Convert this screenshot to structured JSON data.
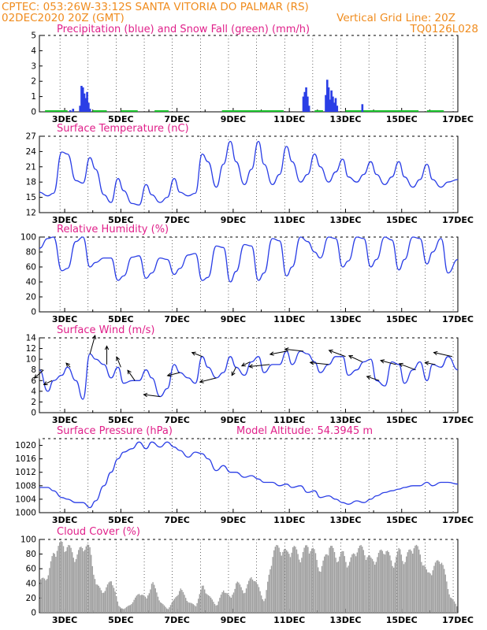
{
  "header": {
    "line1": "CPTEC:   053:26W-33:12S   SANTA VITORIA DO PALMAR (RS)",
    "line2_left": "02DEC2020 20Z (GMT)",
    "line2_right": "Vertical Grid Line: 20Z",
    "code": "TQ0126L028"
  },
  "panels": {
    "precip": {
      "title": "Precipitation (blue) and Snow Fall (green) (mm/h)"
    },
    "temp": {
      "title": "Surface Temperature (nC)"
    },
    "rh": {
      "title": "Relative Humidity (%)"
    },
    "wind": {
      "title": "Surface Wind (m/s)"
    },
    "pres": {
      "title": "Surface Pressure (hPa)",
      "subtitle": "Model Altitude: 54.3945 m"
    },
    "cloud": {
      "title": "Cloud Cover (%)"
    }
  },
  "colors": {
    "series": "#2a3ee6",
    "snow": "#19c22a",
    "cloud": "#a0a0a0",
    "header": "#f08c1e",
    "title": "#e0208a"
  },
  "chart_data": [
    {
      "type": "bar",
      "title": "Precipitation (blue) and Snow Fall (green) (mm/h)",
      "xlabel": "",
      "ylabel": "",
      "x_ticks": [
        "3DEC",
        "5DEC",
        "7DEC",
        "9DEC",
        "11DEC",
        "13DEC",
        "15DEC",
        "17DEC"
      ],
      "ylim": [
        0,
        5
      ],
      "y_ticks": [
        0,
        1,
        2,
        3,
        4,
        5
      ],
      "x_range_days": [
        2.1,
        17.0
      ],
      "series": [
        {
          "name": "precipitation",
          "x": [
            3.2,
            3.3,
            3.55,
            3.6,
            3.65,
            3.7,
            3.75,
            3.8,
            3.85,
            3.9,
            11.5,
            11.55,
            11.6,
            11.65,
            11.7,
            12.3,
            12.35,
            12.4,
            12.45,
            12.5,
            12.55,
            12.6,
            12.65,
            12.7,
            13.6
          ],
          "values": [
            0.1,
            0.2,
            0.4,
            1.7,
            1.6,
            1.2,
            0.9,
            1.3,
            0.6,
            0.2,
            1.0,
            1.3,
            1.6,
            1.0,
            0.4,
            1.1,
            2.1,
            1.6,
            0.8,
            1.4,
            1.0,
            0.6,
            0.9,
            0.4,
            0.5
          ]
        },
        {
          "name": "snow",
          "x": [],
          "values": []
        }
      ]
    },
    {
      "type": "line",
      "title": "Surface Temperature (nC)",
      "xlabel": "",
      "ylabel": "",
      "x_ticks": [
        "3DEC",
        "5DEC",
        "7DEC",
        "9DEC",
        "11DEC",
        "13DEC",
        "15DEC",
        "17DEC"
      ],
      "ylim": [
        12,
        27
      ],
      "y_ticks": [
        12,
        15,
        18,
        21,
        24,
        27
      ],
      "x": [
        2.1,
        2.4,
        2.6,
        2.9,
        3.1,
        3.4,
        3.65,
        3.9,
        4.1,
        4.4,
        4.65,
        4.9,
        5.1,
        5.4,
        5.65,
        5.9,
        6.1,
        6.4,
        6.65,
        6.9,
        7.1,
        7.4,
        7.65,
        7.9,
        8.1,
        8.4,
        8.65,
        8.9,
        9.1,
        9.4,
        9.65,
        9.9,
        10.1,
        10.4,
        10.65,
        10.9,
        11.1,
        11.4,
        11.65,
        11.9,
        12.1,
        12.4,
        12.65,
        12.9,
        13.1,
        13.4,
        13.65,
        13.9,
        14.1,
        14.4,
        14.65,
        14.9,
        15.1,
        15.4,
        15.65,
        15.9,
        16.1,
        16.4,
        16.65,
        17.0
      ],
      "values": [
        16.0,
        15.3,
        15.8,
        23.9,
        23.5,
        18.3,
        17.8,
        22.8,
        20.5,
        15.5,
        14.0,
        18.7,
        16.3,
        13.8,
        13.5,
        17.5,
        15.5,
        14.0,
        15.0,
        18.7,
        16.0,
        15.3,
        15.8,
        23.5,
        22.0,
        17.0,
        21.5,
        26.0,
        22.0,
        17.5,
        20.5,
        26.0,
        21.5,
        17.5,
        19.5,
        25.0,
        22.0,
        18.0,
        19.5,
        23.5,
        21.0,
        18.0,
        20.0,
        22.5,
        19.0,
        18.0,
        19.5,
        22.0,
        19.5,
        17.5,
        19.0,
        22.0,
        19.0,
        17.0,
        18.5,
        21.5,
        18.5,
        17.0,
        18.0,
        18.5
      ]
    },
    {
      "type": "line",
      "title": "Relative Humidity (%)",
      "xlabel": "",
      "ylabel": "",
      "x_ticks": [
        "3DEC",
        "5DEC",
        "7DEC",
        "9DEC",
        "11DEC",
        "13DEC",
        "15DEC",
        "17DEC"
      ],
      "ylim": [
        0,
        100
      ],
      "y_ticks": [
        0,
        20,
        40,
        60,
        80,
        100
      ],
      "x": [
        2.1,
        2.4,
        2.6,
        2.9,
        3.1,
        3.4,
        3.65,
        3.9,
        4.1,
        4.4,
        4.65,
        4.9,
        5.1,
        5.4,
        5.65,
        5.9,
        6.1,
        6.4,
        6.65,
        6.9,
        7.1,
        7.4,
        7.65,
        7.9,
        8.1,
        8.4,
        8.65,
        8.9,
        9.1,
        9.4,
        9.65,
        9.9,
        10.1,
        10.4,
        10.65,
        10.9,
        11.1,
        11.4,
        11.65,
        11.9,
        12.1,
        12.4,
        12.65,
        12.9,
        13.1,
        13.4,
        13.65,
        13.9,
        14.1,
        14.4,
        14.65,
        14.9,
        15.1,
        15.4,
        15.65,
        15.9,
        16.1,
        16.4,
        16.65,
        17.0
      ],
      "values": [
        85.0,
        98.0,
        100.0,
        55.0,
        58.0,
        94.0,
        100.0,
        60.0,
        66.0,
        72.0,
        72.0,
        42.0,
        48.0,
        73.0,
        75.0,
        45.0,
        52.0,
        72.0,
        70.0,
        50.0,
        58.0,
        76.0,
        78.0,
        42.0,
        46.0,
        88.0,
        86.0,
        40.0,
        54.0,
        90.0,
        88.0,
        42.0,
        52.0,
        98.0,
        95.0,
        48.0,
        60.0,
        100.0,
        94.0,
        80.0,
        72.0,
        100.0,
        98.0,
        60.0,
        68.0,
        100.0,
        98.0,
        60.0,
        70.0,
        100.0,
        96.0,
        56.0,
        70.0,
        100.0,
        98.0,
        64.0,
        80.0,
        98.0,
        52.0,
        70.0
      ]
    },
    {
      "type": "line",
      "title": "Surface Wind (m/s)",
      "xlabel": "",
      "ylabel": "",
      "x_ticks": [
        "3DEC",
        "5DEC",
        "7DEC",
        "9DEC",
        "11DEC",
        "13DEC",
        "15DEC",
        "17DEC"
      ],
      "ylim": [
        0,
        14
      ],
      "y_ticks": [
        0,
        2,
        4,
        6,
        8,
        10,
        12,
        14
      ],
      "x": [
        2.1,
        2.4,
        2.6,
        2.9,
        3.1,
        3.4,
        3.65,
        3.9,
        4.1,
        4.4,
        4.65,
        4.9,
        5.1,
        5.4,
        5.65,
        5.9,
        6.1,
        6.4,
        6.65,
        6.9,
        7.1,
        7.4,
        7.65,
        7.9,
        8.1,
        8.4,
        8.65,
        8.9,
        9.1,
        9.4,
        9.65,
        9.9,
        10.1,
        10.4,
        10.65,
        10.9,
        11.1,
        11.4,
        11.65,
        11.9,
        12.1,
        12.4,
        12.65,
        12.9,
        13.1,
        13.4,
        13.65,
        13.9,
        14.1,
        14.4,
        14.65,
        14.9,
        15.1,
        15.4,
        15.65,
        15.9,
        16.1,
        16.4,
        16.65,
        17.0
      ],
      "values": [
        8.0,
        4.0,
        6.0,
        7.0,
        8.5,
        6.0,
        2.5,
        11.0,
        10.0,
        9.0,
        6.5,
        8.5,
        5.5,
        6.0,
        6.0,
        8.0,
        6.5,
        3.0,
        4.5,
        9.0,
        7.5,
        6.5,
        5.5,
        10.5,
        8.5,
        6.5,
        7.5,
        10.5,
        8.5,
        7.0,
        9.5,
        10.5,
        7.5,
        9.0,
        9.0,
        11.5,
        9.0,
        11.5,
        11.0,
        9.5,
        7.5,
        9.0,
        10.5,
        10.5,
        7.0,
        8.0,
        9.5,
        10.0,
        6.0,
        5.0,
        9.5,
        9.0,
        5.5,
        8.0,
        9.5,
        6.0,
        9.0,
        8.5,
        10.5,
        8.0
      ],
      "vectors": [
        {
          "x": 2.25,
          "u": -4.5,
          "v": -4.0
        },
        {
          "x": 2.55,
          "u": -4.0,
          "v": -2.0
        },
        {
          "x": 3.2,
          "u": -2.0,
          "v": 2.0
        },
        {
          "x": 3.9,
          "u": 2.5,
          "v": 9.0
        },
        {
          "x": 4.5,
          "u": 0.0,
          "v": 9.0
        },
        {
          "x": 5.0,
          "u": -2.0,
          "v": 5.0
        },
        {
          "x": 5.5,
          "u": -3.5,
          "v": 5.0
        },
        {
          "x": 6.4,
          "u": -8.0,
          "v": 1.0
        },
        {
          "x": 7.1,
          "u": -6.0,
          "v": -1.5
        },
        {
          "x": 7.9,
          "u": -5.0,
          "v": 2.0
        },
        {
          "x": 8.4,
          "u": -8.0,
          "v": -2.0
        },
        {
          "x": 9.1,
          "u": -2.0,
          "v": -4.0
        },
        {
          "x": 9.6,
          "u": -4.0,
          "v": -2.0
        },
        {
          "x": 10.3,
          "u": -10.0,
          "v": -1.0
        },
        {
          "x": 10.9,
          "u": -8.0,
          "v": -1.5
        },
        {
          "x": 11.5,
          "u": -9.0,
          "v": 1.0
        },
        {
          "x": 12.4,
          "u": -9.0,
          "v": 1.0
        },
        {
          "x": 13.0,
          "u": -8.0,
          "v": 3.0
        },
        {
          "x": 13.6,
          "u": -6.5,
          "v": 3.0
        },
        {
          "x": 14.2,
          "u": -6.0,
          "v": 2.0
        },
        {
          "x": 14.8,
          "u": -7.5,
          "v": 2.0
        },
        {
          "x": 15.5,
          "u": -8.0,
          "v": 3.0
        },
        {
          "x": 16.2,
          "u": -5.0,
          "v": 1.0
        },
        {
          "x": 16.8,
          "u": -9.0,
          "v": 2.0
        }
      ]
    },
    {
      "type": "line",
      "title": "Surface Pressure (hPa)",
      "xlabel": "",
      "ylabel": "",
      "x_ticks": [
        "3DEC",
        "5DEC",
        "7DEC",
        "9DEC",
        "11DEC",
        "13DEC",
        "15DEC",
        "17DEC"
      ],
      "ylim": [
        1000,
        1022
      ],
      "y_ticks": [
        1000,
        1004,
        1008,
        1012,
        1016,
        1020
      ],
      "x": [
        2.1,
        2.4,
        2.6,
        2.9,
        3.1,
        3.4,
        3.65,
        3.9,
        4.1,
        4.4,
        4.65,
        4.9,
        5.1,
        5.4,
        5.65,
        5.9,
        6.1,
        6.4,
        6.65,
        6.9,
        7.1,
        7.4,
        7.65,
        7.9,
        8.1,
        8.4,
        8.65,
        8.9,
        9.1,
        9.4,
        9.65,
        9.9,
        10.1,
        10.4,
        10.65,
        10.9,
        11.1,
        11.4,
        11.65,
        11.9,
        12.1,
        12.4,
        12.65,
        12.9,
        13.1,
        13.4,
        13.65,
        13.9,
        14.1,
        14.4,
        14.65,
        14.9,
        15.1,
        15.4,
        15.65,
        15.9,
        16.1,
        16.4,
        16.65,
        17.0
      ],
      "values": [
        1007.5,
        1007.5,
        1006.5,
        1004.5,
        1004.0,
        1003.0,
        1003.0,
        1001.5,
        1003.5,
        1008.0,
        1012.0,
        1016.0,
        1018.0,
        1019.0,
        1021.0,
        1019.0,
        1021.0,
        1019.5,
        1021.0,
        1019.5,
        1018.5,
        1016.5,
        1018.0,
        1017.5,
        1016.0,
        1012.5,
        1014.0,
        1012.0,
        1012.0,
        1010.5,
        1011.0,
        1010.0,
        1009.0,
        1009.0,
        1008.0,
        1008.5,
        1007.5,
        1008.0,
        1006.0,
        1006.5,
        1004.5,
        1005.0,
        1004.0,
        1003.0,
        1002.5,
        1003.5,
        1003.0,
        1004.0,
        1005.0,
        1006.0,
        1006.5,
        1007.0,
        1007.5,
        1008.0,
        1008.0,
        1009.0,
        1008.0,
        1009.0,
        1009.0,
        1008.5
      ]
    },
    {
      "type": "area",
      "title": "Cloud Cover (%)",
      "xlabel": "",
      "ylabel": "",
      "x_ticks": [
        "3DEC",
        "5DEC",
        "7DEC",
        "9DEC",
        "11DEC",
        "13DEC",
        "15DEC",
        "17DEC"
      ],
      "ylim": [
        0,
        100
      ],
      "y_ticks": [
        0,
        20,
        40,
        60,
        80,
        100
      ],
      "x": [
        2.1,
        2.4,
        2.6,
        2.9,
        3.1,
        3.4,
        3.65,
        3.9,
        4.1,
        4.4,
        4.65,
        4.9,
        5.1,
        5.4,
        5.65,
        5.9,
        6.1,
        6.4,
        6.65,
        6.9,
        7.1,
        7.4,
        7.65,
        7.9,
        8.1,
        8.4,
        8.65,
        8.9,
        9.1,
        9.4,
        9.65,
        9.9,
        10.1,
        10.4,
        10.65,
        10.9,
        11.1,
        11.4,
        11.65,
        11.9,
        12.1,
        12.4,
        12.65,
        12.9,
        13.1,
        13.4,
        13.65,
        13.9,
        14.1,
        14.4,
        14.65,
        14.9,
        15.1,
        15.4,
        15.65,
        15.9,
        16.1,
        16.4,
        16.65,
        17.0
      ],
      "values": [
        45.0,
        55.0,
        90.0,
        100.0,
        95.0,
        80.0,
        100.0,
        90.0,
        40.0,
        30.0,
        50.0,
        10.0,
        5.0,
        15.0,
        30.0,
        20.0,
        45.0,
        15.0,
        5.0,
        20.0,
        35.0,
        15.0,
        10.0,
        40.0,
        25.0,
        10.0,
        35.0,
        20.0,
        45.0,
        30.0,
        55.0,
        35.0,
        15.0,
        90.0,
        95.0,
        85.0,
        95.0,
        80.0,
        100.0,
        85.0,
        60.0,
        100.0,
        80.0,
        85.0,
        70.0,
        95.0,
        90.0,
        75.0,
        80.0,
        95.0,
        70.0,
        90.0,
        75.0,
        100.0,
        85.0,
        55.0,
        65.0,
        80.0,
        30.0,
        5.0
      ]
    }
  ]
}
